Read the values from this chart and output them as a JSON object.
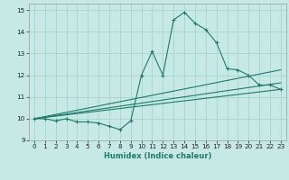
{
  "title": "",
  "xlabel": "Humidex (Indice chaleur)",
  "xlim": [
    -0.5,
    23.5
  ],
  "ylim": [
    9.0,
    15.3
  ],
  "yticks": [
    9,
    10,
    11,
    12,
    13,
    14,
    15
  ],
  "xticks": [
    0,
    1,
    2,
    3,
    4,
    5,
    6,
    7,
    8,
    9,
    10,
    11,
    12,
    13,
    14,
    15,
    16,
    17,
    18,
    19,
    20,
    21,
    22,
    23
  ],
  "background_color": "#c6e9e6",
  "grid_color": "#a8d4d0",
  "line_color": "#1e7a6d",
  "line1_x": [
    0,
    1,
    2,
    3,
    4,
    5,
    6,
    7,
    8,
    9,
    10,
    11,
    12,
    13,
    14,
    15,
    16,
    17,
    18,
    19,
    20,
    21,
    22,
    23
  ],
  "line1_y": [
    10.0,
    10.0,
    9.9,
    10.0,
    9.85,
    9.85,
    9.8,
    9.65,
    9.5,
    9.9,
    12.0,
    13.1,
    12.0,
    14.55,
    14.9,
    14.4,
    14.1,
    13.5,
    12.3,
    12.25,
    12.0,
    11.55,
    11.55,
    11.35
  ],
  "line2_x": [
    0,
    23
  ],
  "line2_y": [
    10.0,
    12.25
  ],
  "line3_x": [
    0,
    23
  ],
  "line3_y": [
    10.0,
    11.65
  ],
  "line4_x": [
    0,
    23
  ],
  "line4_y": [
    10.0,
    11.35
  ]
}
